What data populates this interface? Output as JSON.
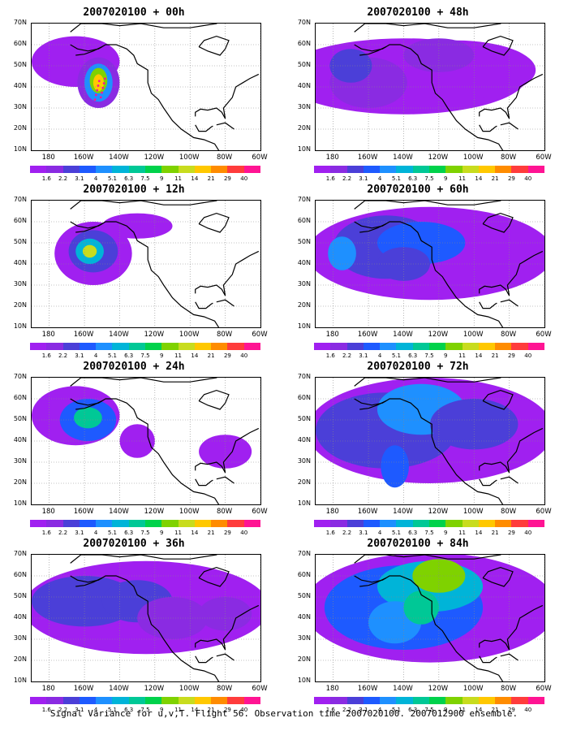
{
  "caption": "Signal Variance for u,v,T. Flight 56. Observation time 2007020100. 2007012900 ensemble.",
  "panels": [
    {
      "title": "2007020100 + 00h",
      "forecast_hour": 0
    },
    {
      "title": "2007020100 + 48h",
      "forecast_hour": 48
    },
    {
      "title": "2007020100 + 12h",
      "forecast_hour": 12
    },
    {
      "title": "2007020100 + 60h",
      "forecast_hour": 60
    },
    {
      "title": "2007020100 + 24h",
      "forecast_hour": 24
    },
    {
      "title": "2007020100 + 72h",
      "forecast_hour": 72
    },
    {
      "title": "2007020100 + 36h",
      "forecast_hour": 36
    },
    {
      "title": "2007020100 + 84h",
      "forecast_hour": 84
    }
  ],
  "axes": {
    "lat_labels": [
      "70N",
      "60N",
      "50N",
      "40N",
      "30N",
      "20N",
      "10N"
    ],
    "lon_labels": [
      "180",
      "160W",
      "140W",
      "120W",
      "100W",
      "80W",
      "60W"
    ]
  },
  "colorbar": {
    "labels": [
      "1.6",
      "2.2",
      "3.1",
      "4",
      "5.1",
      "6.3",
      "7.5",
      "9",
      "11",
      "14",
      "21",
      "29",
      "40"
    ],
    "colors": [
      "#a020f0",
      "#8a2be2",
      "#4b3fd8",
      "#1e5aff",
      "#1e90ff",
      "#00b4d8",
      "#00c896",
      "#00d24b",
      "#7fd200",
      "#c8dc1e",
      "#ffc800",
      "#ff8c00",
      "#ff3c3c",
      "#ff1493"
    ]
  }
}
